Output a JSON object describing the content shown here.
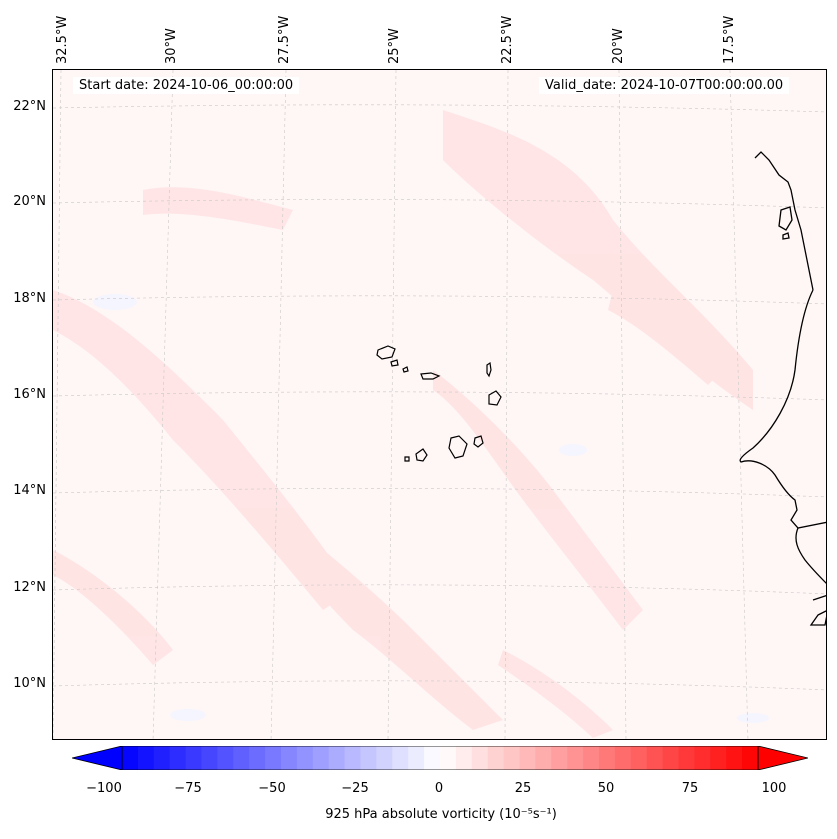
{
  "map": {
    "lon_labels": [
      "32.5°W",
      "30°W",
      "27.5°W",
      "25°W",
      "22.5°W",
      "20°W",
      "17.5°W"
    ],
    "lat_labels": [
      "22°N",
      "20°N",
      "18°N",
      "16°N",
      "14°N",
      "12°N",
      "10°N"
    ],
    "start_date": "Start date: 2024-10-06_00:00:00",
    "valid_date": "Valid_date: 2024-10-07T00:00:00.00",
    "field": "925 hPa absolute vorticity"
  },
  "colorbar": {
    "ticks": [
      "−100",
      "−75",
      "−50",
      "−25",
      "0",
      "25",
      "50",
      "75",
      "100"
    ],
    "label": "925 hPa absolute vorticity (10⁻⁵s⁻¹)",
    "min": -100,
    "max": 100,
    "colors": {
      "low": "#0000ff",
      "mid": "#ffffff",
      "high": "#ff0000"
    }
  }
}
